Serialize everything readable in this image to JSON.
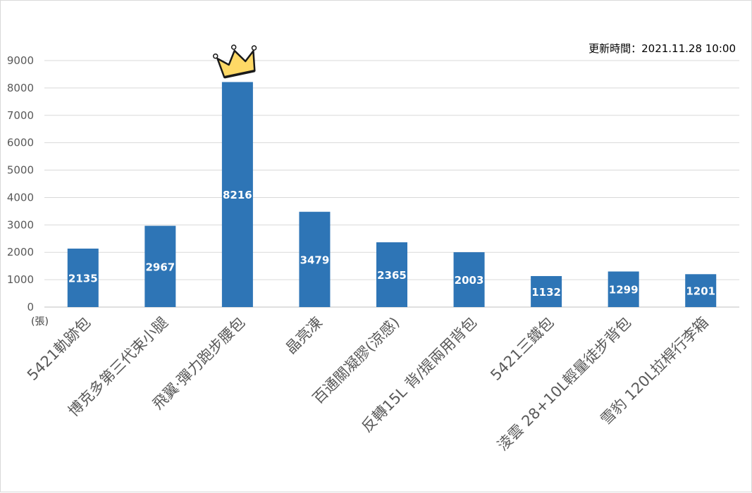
{
  "chart_data": {
    "type": "bar",
    "update_note": "更新時間：2021.11.28 10:00",
    "unit_label": "(張)",
    "categories": [
      "5421軌跡包",
      "博克多第三代束小腿",
      "飛翼·彈力跑步腰包",
      "晶亮凍",
      "百通關凝膠(涼感)",
      "反轉15L 背/提兩用背包",
      "5421三鐵包",
      "淩雲 28+10L輕量徒步背包",
      "雪豹 120L拉桿行李箱"
    ],
    "values": [
      2135,
      2967,
      8216,
      3479,
      2365,
      2003,
      1132,
      1299,
      1201
    ],
    "yticks": [
      0,
      1000,
      2000,
      3000,
      4000,
      5000,
      6000,
      7000,
      8000,
      9000
    ],
    "ylim": [
      0,
      9000
    ],
    "bar_color": "#2E75B6",
    "grid": true,
    "highlight": {
      "category_index": 2,
      "icon": "crown-icon",
      "color": "#FFD966"
    }
  }
}
